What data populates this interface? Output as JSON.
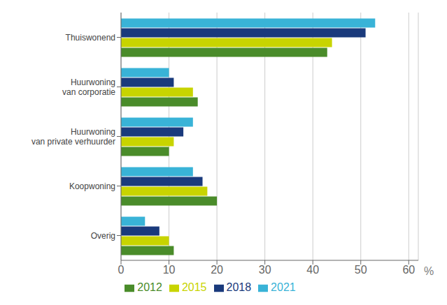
{
  "chart_data": {
    "type": "bar",
    "orientation": "horizontal",
    "categories": [
      "Thuiswonend",
      "Huurwoning\nvan corporatie",
      "Huurwoning\nvan private verhuurder",
      "Koopwoning",
      "Overig"
    ],
    "series": [
      {
        "name": "2021",
        "color": "#39b3d7",
        "values": [
          53,
          10,
          15,
          15,
          5
        ]
      },
      {
        "name": "2018",
        "color": "#1a3a7c",
        "values": [
          51,
          11,
          13,
          17,
          8
        ]
      },
      {
        "name": "2015",
        "color": "#c8d400",
        "values": [
          44,
          15,
          11,
          18,
          10
        ]
      },
      {
        "name": "2012",
        "color": "#4a8c2a",
        "values": [
          43,
          16,
          10,
          20,
          11
        ]
      }
    ],
    "xlabel": "%",
    "xlim": [
      0,
      62
    ],
    "xticks": [
      0,
      10,
      20,
      30,
      40,
      50,
      60
    ],
    "grid": true,
    "legend": "bottom"
  }
}
